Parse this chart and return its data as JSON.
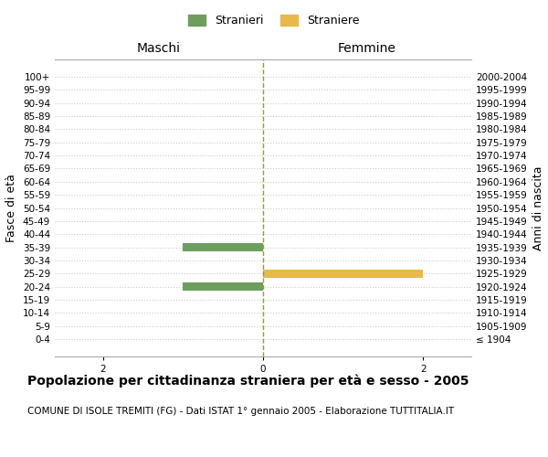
{
  "age_groups": [
    "100+",
    "95-99",
    "90-94",
    "85-89",
    "80-84",
    "75-79",
    "70-74",
    "65-69",
    "60-64",
    "55-59",
    "50-54",
    "45-49",
    "40-44",
    "35-39",
    "30-34",
    "25-29",
    "20-24",
    "15-19",
    "10-14",
    "5-9",
    "0-4"
  ],
  "birth_years": [
    "≤ 1904",
    "1905-1909",
    "1910-1914",
    "1915-1919",
    "1920-1924",
    "1925-1929",
    "1930-1934",
    "1935-1939",
    "1940-1944",
    "1945-1949",
    "1950-1954",
    "1955-1959",
    "1960-1964",
    "1965-1969",
    "1970-1974",
    "1975-1979",
    "1980-1984",
    "1985-1989",
    "1990-1994",
    "1995-1999",
    "2000-2004"
  ],
  "males": [
    0,
    0,
    0,
    0,
    0,
    0,
    0,
    0,
    0,
    0,
    0,
    0,
    0,
    1,
    0,
    0,
    1,
    0,
    0,
    0,
    0
  ],
  "females": [
    0,
    0,
    0,
    0,
    0,
    0,
    0,
    0,
    0,
    0,
    0,
    0,
    0,
    0,
    0,
    2,
    0,
    0,
    0,
    0,
    0
  ],
  "male_color": "#6d9e5e",
  "female_color": "#e8b84b",
  "xlim": 2.6,
  "title": "Popolazione per cittadinanza straniera per età e sesso - 2005",
  "subtitle": "COMUNE DI ISOLE TREMITI (FG) - Dati ISTAT 1° gennaio 2005 - Elaborazione TUTTITALIA.IT",
  "ylabel_left": "Fasce di età",
  "ylabel_right": "Anni di nascita",
  "xlabel_left": "Maschi",
  "xlabel_right": "Femmine",
  "legend_male": "Stranieri",
  "legend_female": "Straniere",
  "bg_color": "#ffffff",
  "grid_color": "#cccccc",
  "center_line_color": "#999944",
  "title_fontsize": 10,
  "subtitle_fontsize": 7.5,
  "axis_label_fontsize": 9,
  "tick_fontsize": 7.5,
  "legend_fontsize": 9,
  "header_fontsize": 10
}
